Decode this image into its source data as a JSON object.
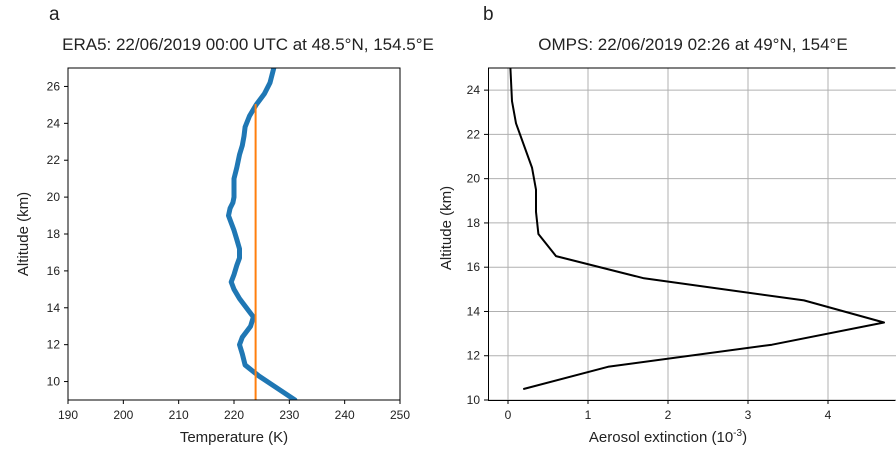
{
  "chart_data": [
    {
      "type": "line",
      "panel_label": "a",
      "title": "ERA5: 22/06/2019 00:00 UTC at 48.5°N, 154.5°E",
      "xlabel": "Temperature (K)",
      "ylabel": "Altitude (km)",
      "xlim": [
        190,
        250
      ],
      "ylim": [
        9.0,
        27.0
      ],
      "xticks": [
        "190",
        "200",
        "210",
        "220",
        "230",
        "240",
        "250"
      ],
      "yticks": [
        "10",
        "12",
        "14",
        "16",
        "18",
        "20",
        "22",
        "24",
        "26"
      ],
      "grid": false,
      "series": [
        {
          "color": "#1f77b4",
          "x": [
            231.0,
            229.0,
            227.0,
            224.5,
            222.0,
            221.5,
            221.0,
            221.5,
            223.0,
            223.5,
            222.5,
            221.0,
            220.0,
            219.5,
            220.0,
            220.5,
            221.0,
            221.0,
            220.5,
            220.0,
            219.5,
            219.0,
            219.3,
            219.8,
            220.0,
            220.0,
            220.0,
            220.5,
            221.0,
            221.5,
            221.8,
            222.0,
            222.8,
            224.0,
            225.5,
            226.5,
            227.2
          ],
          "y": [
            9.0,
            9.4,
            9.8,
            10.3,
            10.9,
            11.5,
            12.0,
            12.4,
            13.0,
            13.5,
            13.9,
            14.5,
            15.0,
            15.4,
            15.8,
            16.3,
            16.7,
            17.2,
            17.7,
            18.2,
            18.6,
            19.0,
            19.4,
            19.7,
            20.0,
            20.5,
            21.0,
            21.6,
            22.3,
            22.8,
            23.3,
            23.8,
            24.4,
            25.0,
            25.6,
            26.2,
            27.0
          ]
        },
        {
          "color": "#ff7f0e",
          "x": [
            223.9,
            223.9
          ],
          "y": [
            9.0,
            25.0
          ]
        }
      ]
    },
    {
      "type": "line",
      "panel_label": "b",
      "title": "OMPS: 22/06/2019 02:26 at 49°N, 154°E",
      "xlabel": "Aerosol extinction (10",
      "xlabel_sup": "-3",
      "xlabel_suffix": ")",
      "ylabel": "Altitude (km)",
      "xlim": [
        -0.25,
        4.85
      ],
      "ylim": [
        10.0,
        25.0
      ],
      "xticks": [
        "0",
        "1",
        "2",
        "3",
        "4"
      ],
      "yticks": [
        "10",
        "12",
        "14",
        "16",
        "18",
        "20",
        "22",
        "24"
      ],
      "grid": true,
      "series": [
        {
          "color": "#000000",
          "x": [
            0.2,
            1.25,
            3.3,
            4.7,
            3.7,
            1.7,
            0.6,
            0.38,
            0.35,
            0.35,
            0.3,
            0.1,
            0.05,
            0.03
          ],
          "y": [
            10.5,
            11.5,
            12.5,
            13.5,
            14.5,
            15.5,
            16.5,
            17.5,
            18.5,
            19.5,
            20.5,
            22.5,
            23.5,
            25.0
          ]
        }
      ]
    }
  ]
}
